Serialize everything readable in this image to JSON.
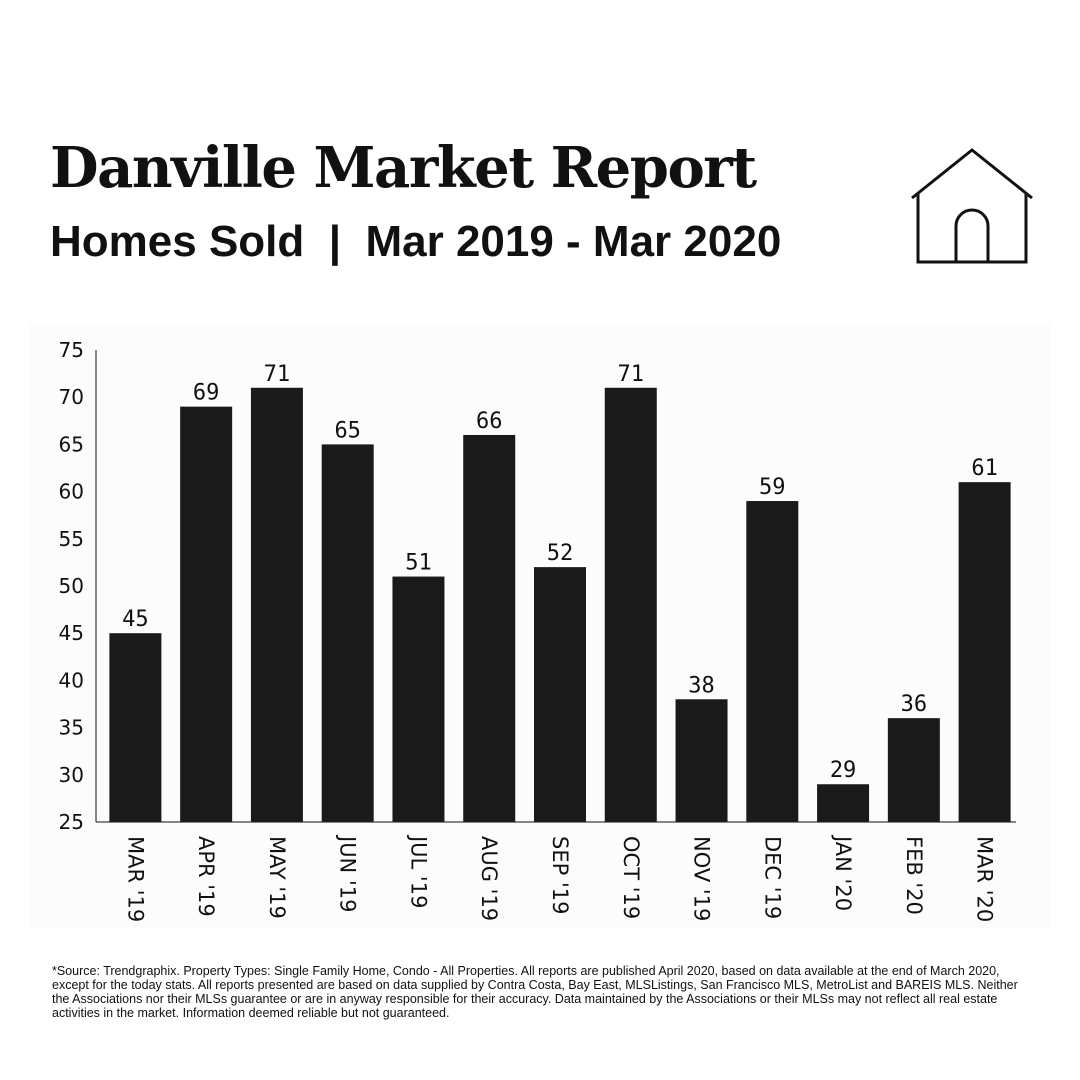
{
  "header": {
    "title": "Danville Market Report",
    "subtitle": "Homes Sold  |  Mar 2019 - Mar 2020",
    "icon": "house-icon"
  },
  "chart_data": {
    "type": "bar",
    "title": "",
    "xlabel": "",
    "ylabel": "",
    "categories": [
      "MAR '19",
      "APR '19",
      "MAY '19",
      "JUN '19",
      "JUL '19",
      "AUG '19",
      "SEP '19",
      "OCT '19",
      "NOV '19",
      "DEC '19",
      "JAN '20",
      "FEB '20",
      "MAR '20"
    ],
    "values": [
      45,
      69,
      71,
      65,
      51,
      66,
      52,
      71,
      38,
      59,
      29,
      36,
      61
    ],
    "ylim": [
      25,
      75
    ],
    "yticks": [
      25,
      30,
      35,
      40,
      45,
      50,
      55,
      60,
      65,
      70,
      75
    ],
    "grid": false,
    "bar_color": "#1a1a1a",
    "data_labels": true,
    "category_label_orientation": "rotated 90 degrees clockwise"
  },
  "footnote": "*Source: Trendgraphix. Property Types: Single Family Home, Condo - All Properties. All reports are published April 2020, based on data available at the end of March 2020, except for the today stats. All reports presented are based on data supplied by Contra Costa, Bay East, MLSListings, San Francisco MLS, MetroList and BAREIS MLS. Neither the Associations nor their MLSs guarantee or are in anyway responsible for their accuracy. Data maintained by the Associations or their MLSs may not reflect all real estate activities in the market. Information deemed reliable but not guaranteed."
}
